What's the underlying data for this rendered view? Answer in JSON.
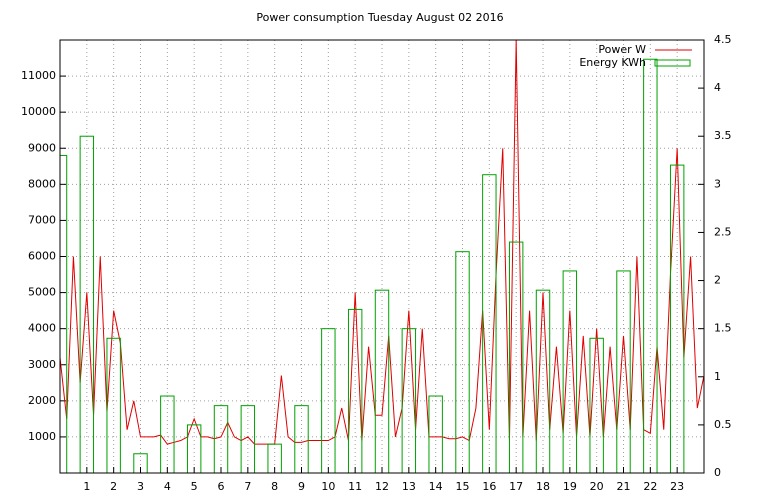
{
  "chart_data": {
    "type": "line_boxes",
    "title": "Power consumption Tuesday August 02 2016",
    "xlim": [
      0,
      24
    ],
    "xticks": [
      1,
      2,
      3,
      4,
      5,
      6,
      7,
      8,
      9,
      10,
      11,
      12,
      13,
      14,
      15,
      16,
      17,
      18,
      19,
      20,
      21,
      22,
      23
    ],
    "ylim": [
      0,
      12000
    ],
    "yticks": [
      1000,
      2000,
      3000,
      4000,
      5000,
      6000,
      7000,
      8000,
      9000,
      10000,
      11000
    ],
    "y2lim": [
      0,
      4.5
    ],
    "y2ticks": [
      0,
      0.5,
      1,
      1.5,
      2,
      2.5,
      3,
      3.5,
      4,
      4.5
    ],
    "grid": true,
    "legend": "top-right",
    "series": [
      {
        "name": "Power W",
        "color": "#e00000",
        "kind": "line",
        "x": [
          0,
          0.25,
          0.5,
          0.75,
          1,
          1.25,
          1.5,
          1.75,
          2,
          2.25,
          2.5,
          2.75,
          3,
          3.25,
          3.5,
          3.75,
          4,
          4.25,
          4.5,
          4.75,
          5,
          5.25,
          5.5,
          5.75,
          6,
          6.25,
          6.5,
          6.75,
          7,
          7.25,
          7.5,
          7.75,
          8,
          8.25,
          8.5,
          8.75,
          9,
          9.25,
          9.5,
          9.75,
          10,
          10.25,
          10.5,
          10.75,
          11,
          11.25,
          11.5,
          11.75,
          12,
          12.25,
          12.5,
          12.75,
          13,
          13.25,
          13.5,
          13.75,
          14,
          14.25,
          14.5,
          14.75,
          15,
          15.25,
          15.5,
          15.75,
          16,
          16.25,
          16.5,
          16.75,
          17,
          17.25,
          17.5,
          17.75,
          18,
          18.25,
          18.5,
          18.75,
          19,
          19.25,
          19.5,
          19.75,
          20,
          20.25,
          20.5,
          20.75,
          21,
          21.25,
          21.5,
          21.75,
          22,
          22.25,
          22.5,
          22.75,
          23,
          23.25,
          23.5,
          23.75,
          24
        ],
        "values": [
          3200,
          1500,
          6000,
          2500,
          5000,
          1600,
          6000,
          1700,
          4500,
          3600,
          1200,
          2000,
          1000,
          1000,
          1000,
          1050,
          800,
          850,
          900,
          1000,
          1500,
          1000,
          1000,
          950,
          1000,
          1400,
          1000,
          900,
          1000,
          800,
          800,
          800,
          800,
          2700,
          1000,
          850,
          850,
          900,
          900,
          900,
          900,
          1000,
          1800,
          900,
          5000,
          900,
          3500,
          1600,
          1600,
          3800,
          1000,
          1800,
          4500,
          1200,
          4000,
          1000,
          1000,
          1000,
          950,
          950,
          1000,
          900,
          1800,
          4500,
          1200,
          5500,
          9000,
          900,
          12000,
          1000,
          4500,
          900,
          5000,
          1200,
          3500,
          1100,
          4500,
          1000,
          3800,
          1000,
          4000,
          1000,
          3500,
          1200,
          3800,
          1200,
          6000,
          1200,
          1100,
          3500,
          1200,
          5500,
          9000,
          3200,
          6000,
          1800,
          2700
        ]
      },
      {
        "name": "Energy KWh",
        "color": "#00a000",
        "kind": "boxes",
        "axis": "y2",
        "x": [
          0,
          1,
          2,
          3,
          4,
          5,
          6,
          7,
          8,
          9,
          10,
          11,
          12,
          13,
          14,
          15,
          16,
          17,
          18,
          19,
          20,
          21,
          22,
          23
        ],
        "values": [
          3.3,
          3.5,
          1.4,
          0.2,
          0.8,
          0.5,
          0.7,
          0.7,
          0.3,
          0.7,
          1.5,
          1.7,
          1.9,
          1.5,
          0.8,
          2.3,
          3.1,
          2.4,
          1.9,
          2.1,
          1.4,
          2.1,
          4.3,
          3.2
        ]
      }
    ]
  }
}
